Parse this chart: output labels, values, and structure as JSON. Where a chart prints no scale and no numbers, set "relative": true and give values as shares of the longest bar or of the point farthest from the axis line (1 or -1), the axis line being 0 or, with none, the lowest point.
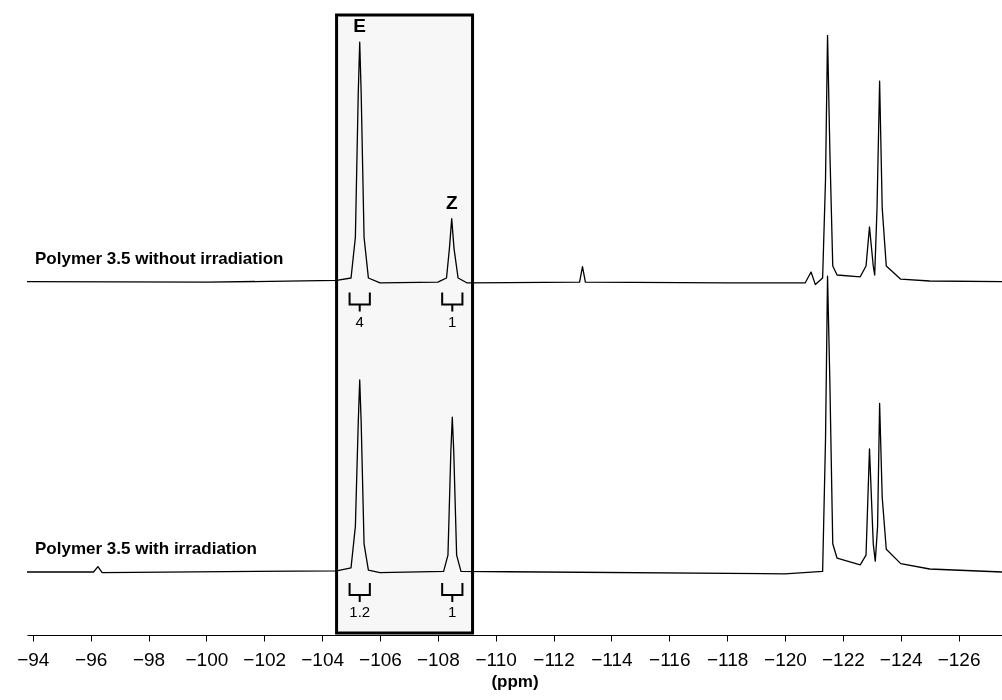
{
  "chart_data": {
    "type": "line",
    "xlabel": "(ppm)",
    "relative": true,
    "xlim": [
      -93.8,
      -127.5
    ],
    "xticks": [
      -94,
      -96,
      -98,
      -100,
      -102,
      -104,
      -106,
      -108,
      -110,
      -112,
      -114,
      -116,
      -118,
      -120,
      -122,
      -124,
      -126
    ],
    "series": [
      {
        "name": "Polymer 3.5 without irradiation",
        "color": "#000000",
        "x": [
          -93.8,
          -100,
          -104.5,
          -105.0,
          -105.15,
          -105.25,
          -105.3,
          -105.35,
          -105.45,
          -105.6,
          -106,
          -108,
          -108.3,
          -108.4,
          -108.48,
          -108.56,
          -108.7,
          -109,
          -112.9,
          -113.0,
          -113.1,
          -118,
          -120.7,
          -120.9,
          -121.05,
          -121.3,
          -121.4,
          -121.47,
          -121.55,
          -121.65,
          -121.8,
          -122.6,
          -122.8,
          -122.92,
          -123.05,
          -123.1,
          -123.18,
          -123.27,
          -123.36,
          -123.5,
          -124,
          -125,
          -127.5
        ],
        "values": [
          0.589,
          0.588,
          0.591,
          0.595,
          0.663,
          0.904,
          0.988,
          0.904,
          0.663,
          0.595,
          0.587,
          0.588,
          0.595,
          0.644,
          0.694,
          0.644,
          0.595,
          0.587,
          0.588,
          0.614,
          0.588,
          0.587,
          0.587,
          0.605,
          0.584,
          0.595,
          0.759,
          1.0,
          0.807,
          0.615,
          0.6,
          0.597,
          0.615,
          0.68,
          0.615,
          0.6,
          0.711,
          0.923,
          0.711,
          0.615,
          0.593,
          0.59,
          0.589
        ]
      },
      {
        "name": "Polymer 3.5 with irradiation",
        "color": "#000000",
        "x": [
          -93.8,
          -96.1,
          -96.25,
          -96.4,
          -104.5,
          -105.0,
          -105.15,
          -105.25,
          -105.3,
          -105.35,
          -105.45,
          -105.6,
          -106,
          -108.2,
          -108.35,
          -108.45,
          -108.5,
          -108.55,
          -108.65,
          -108.8,
          -120,
          -121.3,
          -121.4,
          -121.47,
          -121.55,
          -121.65,
          -121.8,
          -122.6,
          -122.8,
          -122.92,
          -123.05,
          -123.12,
          -123.2,
          -123.27,
          -123.36,
          -123.5,
          -124,
          -125,
          -127.5
        ],
        "values": [
          0.105,
          0.105,
          0.114,
          0.104,
          0.107,
          0.112,
          0.181,
          0.355,
          0.425,
          0.355,
          0.152,
          0.108,
          0.104,
          0.106,
          0.133,
          0.306,
          0.363,
          0.306,
          0.133,
          0.106,
          0.102,
          0.106,
          0.326,
          0.598,
          0.422,
          0.152,
          0.128,
          0.117,
          0.133,
          0.31,
          0.152,
          0.123,
          0.181,
          0.386,
          0.229,
          0.143,
          0.119,
          0.11,
          0.105
        ]
      }
    ],
    "bands": [
      {
        "axis": "x",
        "from": -104.5,
        "to": -109.2,
        "color": "#000000"
      }
    ],
    "annotations": [
      {
        "text": "E",
        "x": -105.3,
        "y": 0.988
      },
      {
        "text": "Z",
        "x": -108.48,
        "y": 0.694
      },
      {
        "text": "4",
        "x": -105.3
      },
      {
        "text": "1",
        "x": -108.5
      },
      {
        "text": "1.2",
        "x": -105.3
      },
      {
        "text": "1",
        "x": -108.5
      }
    ]
  }
}
